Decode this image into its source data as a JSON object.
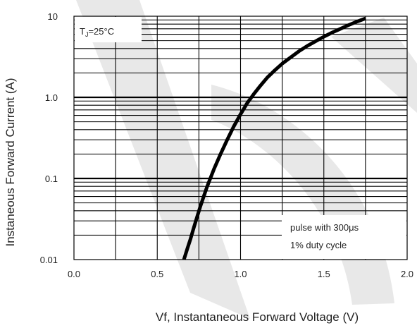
{
  "chart_data": {
    "type": "line",
    "x_scale": "linear",
    "y_scale": "log",
    "xlim": [
      0.0,
      2.0
    ],
    "ylim": [
      0.01,
      10
    ],
    "xticks": [
      {
        "value": 0.0,
        "label": "0.0"
      },
      {
        "value": 0.5,
        "label": "0.5"
      },
      {
        "value": 1.0,
        "label": "1.0"
      },
      {
        "value": 1.5,
        "label": "1.5"
      },
      {
        "value": 2.0,
        "label": "2.0"
      }
    ],
    "yticks": [
      {
        "value": 0.01,
        "label": "0.01"
      },
      {
        "value": 0.1,
        "label": "0.1"
      },
      {
        "value": 1.0,
        "label": "1.0"
      },
      {
        "value": 10,
        "label": "10"
      }
    ],
    "xlabel": "Vf, Instantaneous Forward  Voltage (V)",
    "ylabel": "Instaneous Forward Current (A)",
    "grid": true,
    "annotations": {
      "temperature": "T",
      "temperature_subscript": "J",
      "temperature_value": "=25°C",
      "note_line1": "pulse with 300μs",
      "note_line2": "1% duty cycle"
    },
    "series": [
      {
        "x": [
          0.66,
          0.68,
          0.7,
          0.72,
          0.74,
          0.76,
          0.78,
          0.8,
          0.84,
          0.88,
          0.92,
          0.96,
          1.0,
          1.04,
          1.08,
          1.12,
          1.16,
          1.2,
          1.25,
          1.3,
          1.35,
          1.4,
          1.45,
          1.5,
          1.55,
          1.6,
          1.65,
          1.7,
          1.75
        ],
        "y": [
          0.01,
          0.0135,
          0.018,
          0.025,
          0.034,
          0.046,
          0.061,
          0.08,
          0.13,
          0.2,
          0.3,
          0.44,
          0.62,
          0.85,
          1.1,
          1.4,
          1.75,
          2.1,
          2.6,
          3.1,
          3.7,
          4.3,
          4.9,
          5.6,
          6.3,
          7.0,
          7.8,
          8.6,
          9.4
        ],
        "color": "#000000"
      }
    ],
    "colors": {
      "curve": "#000000",
      "grid": "#000000",
      "watermark": "#e6e6e6"
    }
  }
}
